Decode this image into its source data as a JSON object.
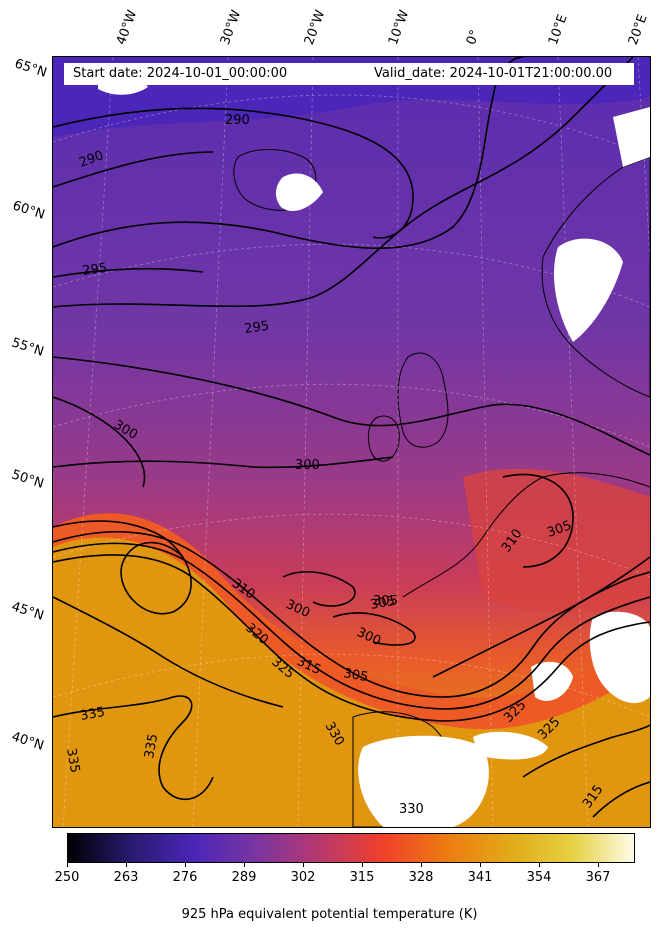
{
  "header": {
    "start_date": "Start date: 2024-10-01_00:00:00",
    "valid_date": "Valid_date: 2024-10-01T21:00:00.00"
  },
  "latitude_labels": [
    "65°N",
    "60°N",
    "55°N",
    "50°N",
    "45°N",
    "40°N"
  ],
  "longitude_labels": [
    "40°W",
    "30°W",
    "20°W",
    "10°W",
    "0°",
    "10°E",
    "20°E"
  ],
  "contour_labels": [
    "290",
    "290",
    "295",
    "295",
    "300",
    "300",
    "300",
    "300",
    "305",
    "305",
    "305",
    "310",
    "310",
    "315",
    "320",
    "325",
    "325",
    "325",
    "330",
    "335",
    "335",
    "335",
    "330",
    "315",
    "305"
  ],
  "colorbar": {
    "ticks": [
      "250",
      "263",
      "276",
      "289",
      "302",
      "315",
      "328",
      "341",
      "354",
      "367"
    ],
    "title": "925 hPa equivalent potential temperature (K)",
    "colors": [
      "#000004",
      "#2a1a6e",
      "#4a26b8",
      "#7a35a0",
      "#b8386e",
      "#f0402a",
      "#ee7a12",
      "#e2a816",
      "#e6d040",
      "#fcfce6"
    ]
  }
}
